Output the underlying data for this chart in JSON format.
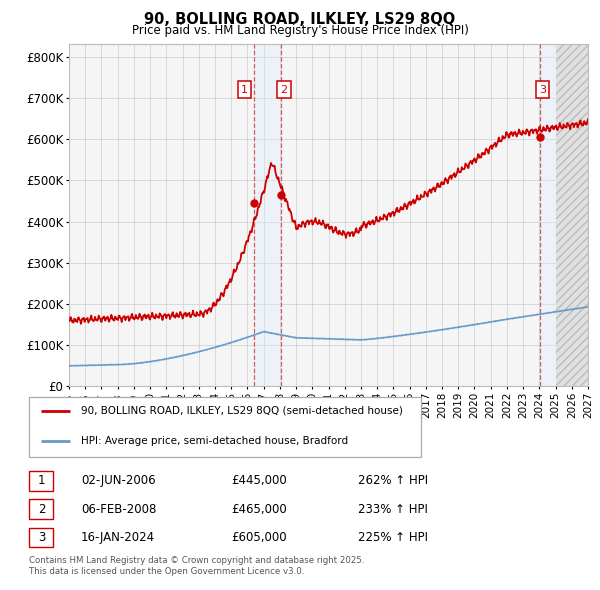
{
  "title1": "90, BOLLING ROAD, ILKLEY, LS29 8QQ",
  "title2": "Price paid vs. HM Land Registry's House Price Index (HPI)",
  "legend_line1": "90, BOLLING ROAD, ILKLEY, LS29 8QQ (semi-detached house)",
  "legend_line2": "HPI: Average price, semi-detached house, Bradford",
  "footer": "Contains HM Land Registry data © Crown copyright and database right 2025.\nThis data is licensed under the Open Government Licence v3.0.",
  "transactions": [
    {
      "num": 1,
      "date": "02-JUN-2006",
      "price": 445000,
      "hpi_pct": "262% ↑ HPI",
      "date_x": 2006.42
    },
    {
      "num": 2,
      "date": "06-FEB-2008",
      "price": 465000,
      "hpi_pct": "233% ↑ HPI",
      "date_x": 2008.1
    },
    {
      "num": 3,
      "date": "16-JAN-2024",
      "price": 605000,
      "hpi_pct": "225% ↑ HPI",
      "date_x": 2024.04
    }
  ],
  "red_color": "#cc0000",
  "blue_color": "#6699cc",
  "shade_color": "#ddeeff",
  "hatch_color": "#cccccc",
  "grid_color": "#cccccc",
  "bg_color": "#f5f5f5",
  "ylim": [
    0,
    830000
  ],
  "xlim": [
    1995,
    2027
  ],
  "yticks": [
    0,
    100000,
    200000,
    300000,
    400000,
    500000,
    600000,
    700000,
    800000
  ],
  "ytick_labels": [
    "£0",
    "£100K",
    "£200K",
    "£300K",
    "£400K",
    "£500K",
    "£600K",
    "£700K",
    "£800K"
  ],
  "xticks": [
    1995,
    1996,
    1997,
    1998,
    1999,
    2000,
    2001,
    2002,
    2003,
    2004,
    2005,
    2006,
    2007,
    2008,
    2009,
    2010,
    2011,
    2012,
    2013,
    2014,
    2015,
    2016,
    2017,
    2018,
    2019,
    2020,
    2021,
    2022,
    2023,
    2024,
    2025,
    2026,
    2027
  ]
}
